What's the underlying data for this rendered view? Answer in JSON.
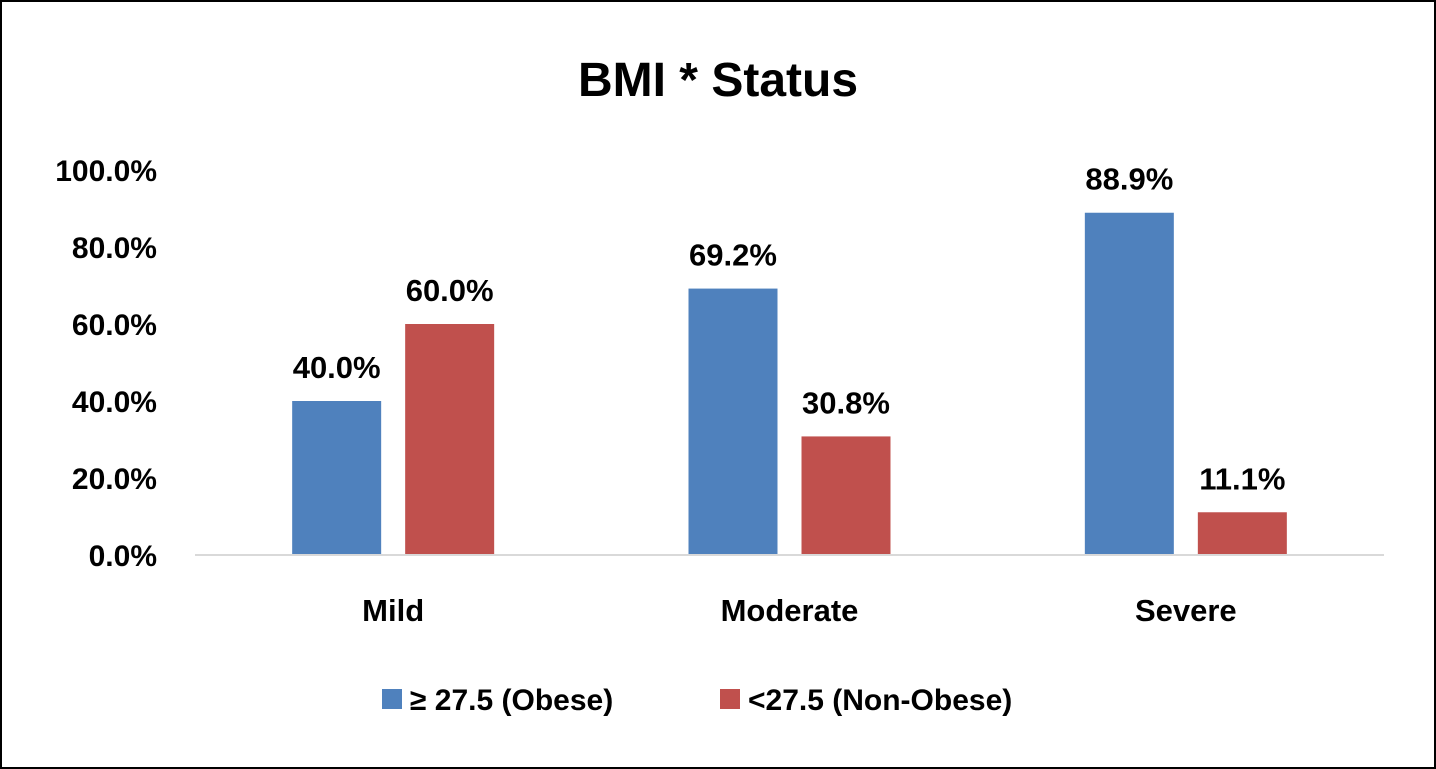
{
  "chart_data": {
    "type": "bar",
    "title": "BMI * Status",
    "xlabel": "",
    "ylabel": "",
    "categories": [
      "Mild",
      "Moderate",
      "Severe"
    ],
    "series": [
      {
        "name": "≥ 27.5 (Obese)",
        "values": [
          40.0,
          69.2,
          88.9
        ],
        "labels": [
          "40.0%",
          "69.2%",
          "88.9%"
        ],
        "color": "#4F81BD"
      },
      {
        "name": "<27.5 (Non-Obese)",
        "values": [
          60.0,
          30.8,
          11.1
        ],
        "labels": [
          "60.0%",
          "30.8%",
          "11.1%"
        ],
        "color": "#C0504D"
      }
    ],
    "ylim": [
      0,
      100
    ],
    "yticks": [
      "0.0%",
      "20.0%",
      "40.0%",
      "60.0%",
      "80.0%",
      "100.0%"
    ],
    "grid": false,
    "legend_position": "bottom"
  }
}
